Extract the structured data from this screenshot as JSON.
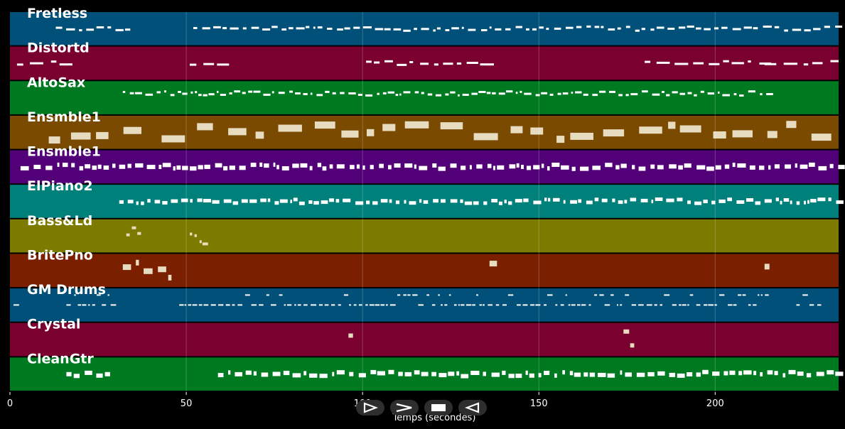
{
  "chart_data": {
    "type": "piano-roll",
    "title": "",
    "xlabel": "Temps (secondes)",
    "xlim": [
      0,
      235
    ],
    "xticks": [
      0,
      50,
      100,
      150,
      200
    ],
    "grid": true,
    "tracks": [
      {
        "name": "Fretless",
        "color": "#005079",
        "segments": [
          [
            13,
            33
          ],
          [
            52,
            235
          ]
        ],
        "tick": 1.4,
        "h": 3,
        "shape": "line"
      },
      {
        "name": "Distortd",
        "color": "#7a0030",
        "segments": [
          [
            2,
            16
          ],
          [
            51,
            59
          ],
          [
            101,
            137
          ],
          [
            180,
            213
          ],
          [
            214,
            235
          ]
        ],
        "tick": 2.2,
        "h": 3,
        "shape": "line"
      },
      {
        "name": "AltoSax",
        "color": "#007a20",
        "segments": [
          [
            32,
            215
          ]
        ],
        "tick": 1.2,
        "h": 3,
        "shape": "line"
      },
      {
        "name": "Ensmble1",
        "color": "#7a4a00",
        "segments": [
          [
            11,
            33
          ],
          [
            43,
            235
          ]
        ],
        "tick": 4,
        "h": 10,
        "shape": "cluster"
      },
      {
        "name": "Ensmble1",
        "color": "#520077",
        "segments": [
          [
            3,
            235
          ]
        ],
        "tick": 1.4,
        "h": 6,
        "shape": "block"
      },
      {
        "name": "ElPiano2",
        "color": "#00807a",
        "segments": [
          [
            31,
            235
          ]
        ],
        "tick": 1.3,
        "h": 5,
        "shape": "block"
      },
      {
        "name": "Bass&Ld",
        "color": "#7d7a00",
        "segments": [
          [
            33,
            37
          ],
          [
            51,
            55
          ]
        ],
        "tick": 1,
        "h": 4,
        "shape": "cluster"
      },
      {
        "name": "BritePno",
        "color": "#7a2000",
        "segments": [
          [
            32,
            46
          ],
          [
            136,
            137
          ],
          [
            214,
            215
          ]
        ],
        "tick": 1.5,
        "h": 8,
        "shape": "cluster"
      },
      {
        "name": "GM Drums",
        "color": "#005079",
        "segments": [
          [
            1,
            2
          ],
          [
            16,
            30
          ],
          [
            48,
            62
          ],
          [
            60,
            215
          ],
          [
            223,
            230
          ]
        ],
        "tick": 0.9,
        "h": 2,
        "shape": "drums"
      },
      {
        "name": "Crystal",
        "color": "#7a0030",
        "segments": [
          [
            96,
            98
          ],
          [
            174,
            176
          ]
        ],
        "tick": 1,
        "h": 6,
        "shape": "cluster"
      },
      {
        "name": "CleanGtr",
        "color": "#007a20",
        "segments": [
          [
            16,
            29
          ],
          [
            59,
            235
          ]
        ],
        "tick": 1.4,
        "h": 6,
        "shape": "block"
      }
    ]
  },
  "transport": {
    "play_icon": "play-icon",
    "fast_forward_icon": "fast-forward-icon",
    "stop_icon": "stop-icon",
    "rewind_icon": "rewind-icon"
  }
}
